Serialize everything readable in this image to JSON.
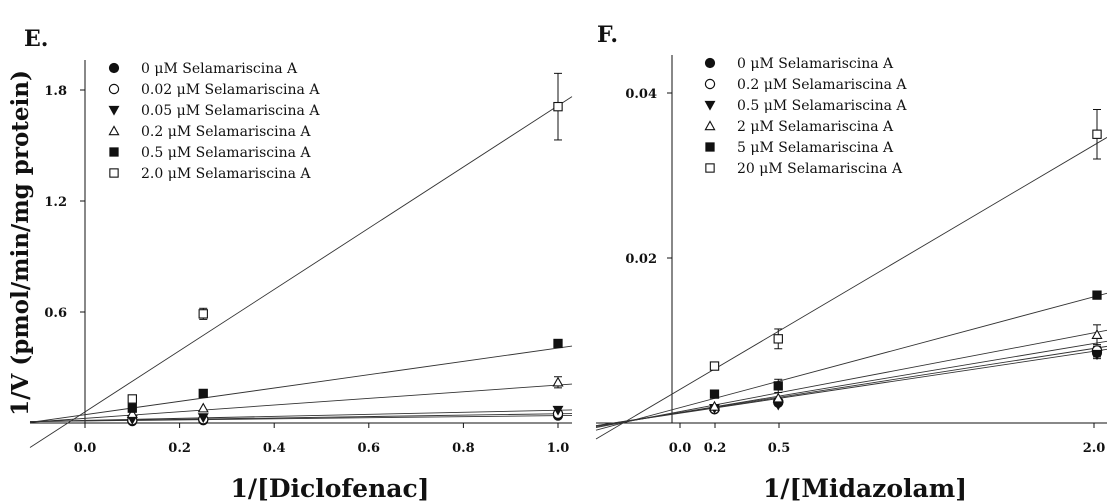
{
  "chart_data": [
    {
      "type": "scatter",
      "panel": "E.",
      "xlabel": "1/[Diclofenac]",
      "ylabel": "1/V (pmol/min/mg protein)",
      "x_ticks": [
        "0.0",
        "0.2",
        "0.4",
        "0.6",
        "0.8",
        "1.0"
      ],
      "y_ticks": [
        "0.6",
        "1.2",
        "1.8"
      ],
      "xlim": [
        -0.08,
        1.07
      ],
      "ylim": [
        0,
        2.0
      ],
      "legend_position": "top-left",
      "x": [
        0.1,
        0.25,
        1.0
      ],
      "series": [
        {
          "name": "0 μM Selamariscina A",
          "marker": "filled-circle",
          "values": [
            0.01,
            0.015,
            0.04
          ],
          "err": [
            0.005,
            0.005,
            0.01
          ]
        },
        {
          "name": "0.02 μM Selamariscina A",
          "marker": "open-circle",
          "values": [
            0.015,
            0.02,
            0.05
          ],
          "err": [
            0.005,
            0.005,
            0.01
          ]
        },
        {
          "name": "0.05 μM Selamariscina A",
          "marker": "filled-triangle-down",
          "values": [
            0.02,
            0.03,
            0.07
          ],
          "err": [
            0.005,
            0.005,
            0.01
          ]
        },
        {
          "name": "0.2 μM Selamariscina A",
          "marker": "open-triangle-up",
          "values": [
            0.05,
            0.08,
            0.22
          ],
          "err": [
            0.005,
            0.01,
            0.03
          ]
        },
        {
          "name": "0.5 μM Selamariscina A",
          "marker": "filled-square",
          "values": [
            0.08,
            0.16,
            0.43
          ],
          "err": [
            0.01,
            0.01,
            0.01
          ]
        },
        {
          "name": "2.0 μM Selamariscina A",
          "marker": "open-square",
          "values": [
            0.13,
            0.59,
            1.71
          ],
          "err": [
            0.02,
            0.03,
            0.18
          ]
        }
      ],
      "fit_lines": [
        {
          "slope": 0.029,
          "intercept": 0.011
        },
        {
          "slope": 0.038,
          "intercept": 0.012
        },
        {
          "slope": 0.055,
          "intercept": 0.014
        },
        {
          "slope": 0.18,
          "intercept": 0.025
        },
        {
          "slope": 0.36,
          "intercept": 0.045
        },
        {
          "slope": 1.655,
          "intercept": 0.06
        }
      ]
    },
    {
      "type": "scatter",
      "panel": "F.",
      "xlabel": "1/[Midazolam]",
      "ylabel": "",
      "x_ticks": [
        "0.0",
        "0.2",
        "0.5",
        "2.0"
      ],
      "y_ticks": [
        "0.02",
        "0.04"
      ],
      "x_scale": "reciprocal",
      "xlim": [
        -0.58,
        2.05
      ],
      "ylim": [
        0,
        0.045
      ],
      "legend_position": "top-left",
      "x": [
        0.2,
        0.5,
        2.0
      ],
      "series": [
        {
          "name": "0 μM Selamariscina A",
          "marker": "filled-circle",
          "values": [
            0.00165,
            0.00245,
            0.0085
          ],
          "err": [
            0.0003,
            0.0003,
            0.0005
          ]
        },
        {
          "name": "0.2 μM Selamariscina A",
          "marker": "open-circle",
          "values": [
            0.0017,
            0.0026,
            0.0088
          ],
          "err": [
            0.0003,
            0.0003,
            0.0005
          ]
        },
        {
          "name": "0.5 μM Selamariscina A",
          "marker": "filled-triangle-down",
          "values": [
            0.0018,
            0.0022,
            0.0083
          ],
          "err": [
            0.0003,
            0.0003,
            0.0005
          ]
        },
        {
          "name": "2 μM Selamariscina A",
          "marker": "open-triangle-up",
          "values": [
            0.002,
            0.003,
            0.0107
          ],
          "err": [
            0.0003,
            0.0004,
            0.0012
          ]
        },
        {
          "name": "5 μM Selamariscina A",
          "marker": "filled-square",
          "values": [
            0.0035,
            0.0045,
            0.0155
          ],
          "err": [
            0.0004,
            0.0008,
            0.0003
          ]
        },
        {
          "name": "20 μM Selamariscina A",
          "marker": "open-square",
          "values": [
            0.0069,
            0.0102,
            0.035
          ],
          "err": [
            0.0003,
            0.0012,
            0.003
          ]
        }
      ],
      "fit_lines": [
        {
          "slope": 0.00385,
          "intercept": 0.00105
        },
        {
          "slope": 0.004,
          "intercept": 0.0011
        },
        {
          "slope": 0.0043,
          "intercept": 0.0011
        },
        {
          "slope": 0.0049,
          "intercept": 0.0012
        },
        {
          "slope": 0.0069,
          "intercept": 0.0016
        },
        {
          "slope": 0.0152,
          "intercept": 0.0035
        }
      ]
    }
  ]
}
